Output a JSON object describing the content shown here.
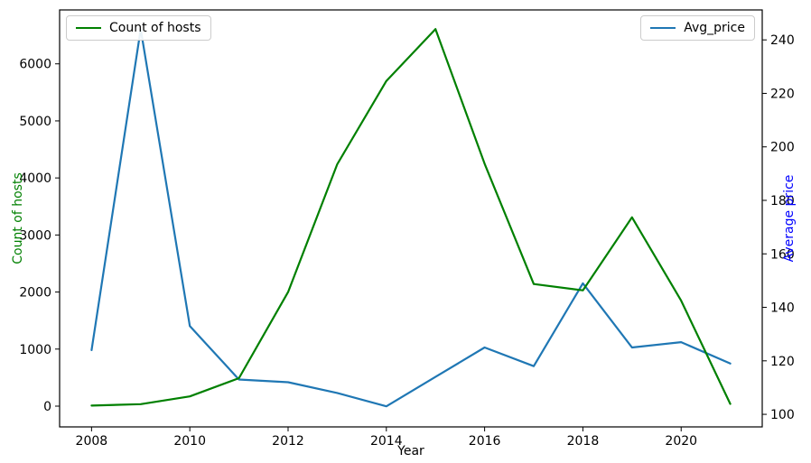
{
  "figure": {
    "xlabel": "Year",
    "ylabel_left": "Count of hosts",
    "ylabel_right": "Average price",
    "legend_left_label": "Count of hosts",
    "legend_right_label": "Avg_price"
  },
  "chart_data": {
    "type": "line",
    "title": "",
    "xlabel": "Year",
    "ylabel_left": "Count of hosts",
    "ylabel_right": "Average price",
    "grid": false,
    "legend_positions": [
      "upper left",
      "upper right"
    ],
    "x": [
      2008,
      2009,
      2010,
      2011,
      2012,
      2013,
      2014,
      2015,
      2016,
      2017,
      2018,
      2019,
      2020,
      2021
    ],
    "series": [
      {
        "name": "Count of hosts",
        "axis": "left",
        "color": "#008000",
        "values": [
          10,
          35,
          170,
          490,
          2000,
          4240,
          5700,
          6610,
          4250,
          2140,
          2030,
          3310,
          1850,
          40
        ]
      },
      {
        "name": "Avg_price",
        "axis": "right",
        "color": "#1f77b4",
        "values": [
          124,
          244,
          133,
          113,
          112,
          108,
          103,
          114,
          125,
          118,
          149,
          125,
          127,
          119
        ]
      }
    ],
    "x_ticks": [
      2008,
      2010,
      2012,
      2014,
      2016,
      2018,
      2020
    ],
    "left_ticks": [
      0,
      1000,
      2000,
      3000,
      4000,
      5000,
      6000
    ],
    "right_ticks": [
      100,
      120,
      140,
      160,
      180,
      200,
      220,
      240
    ],
    "xlim": [
      2007.35,
      2021.65
    ],
    "left_ylim": [
      -364,
      6945
    ],
    "right_ylim": [
      95.3,
      251.2
    ],
    "colors": {
      "left_axis_label": "#008000",
      "right_axis_label": "#0000ff",
      "tick_labels": "#000000",
      "spines": "#000000"
    }
  }
}
